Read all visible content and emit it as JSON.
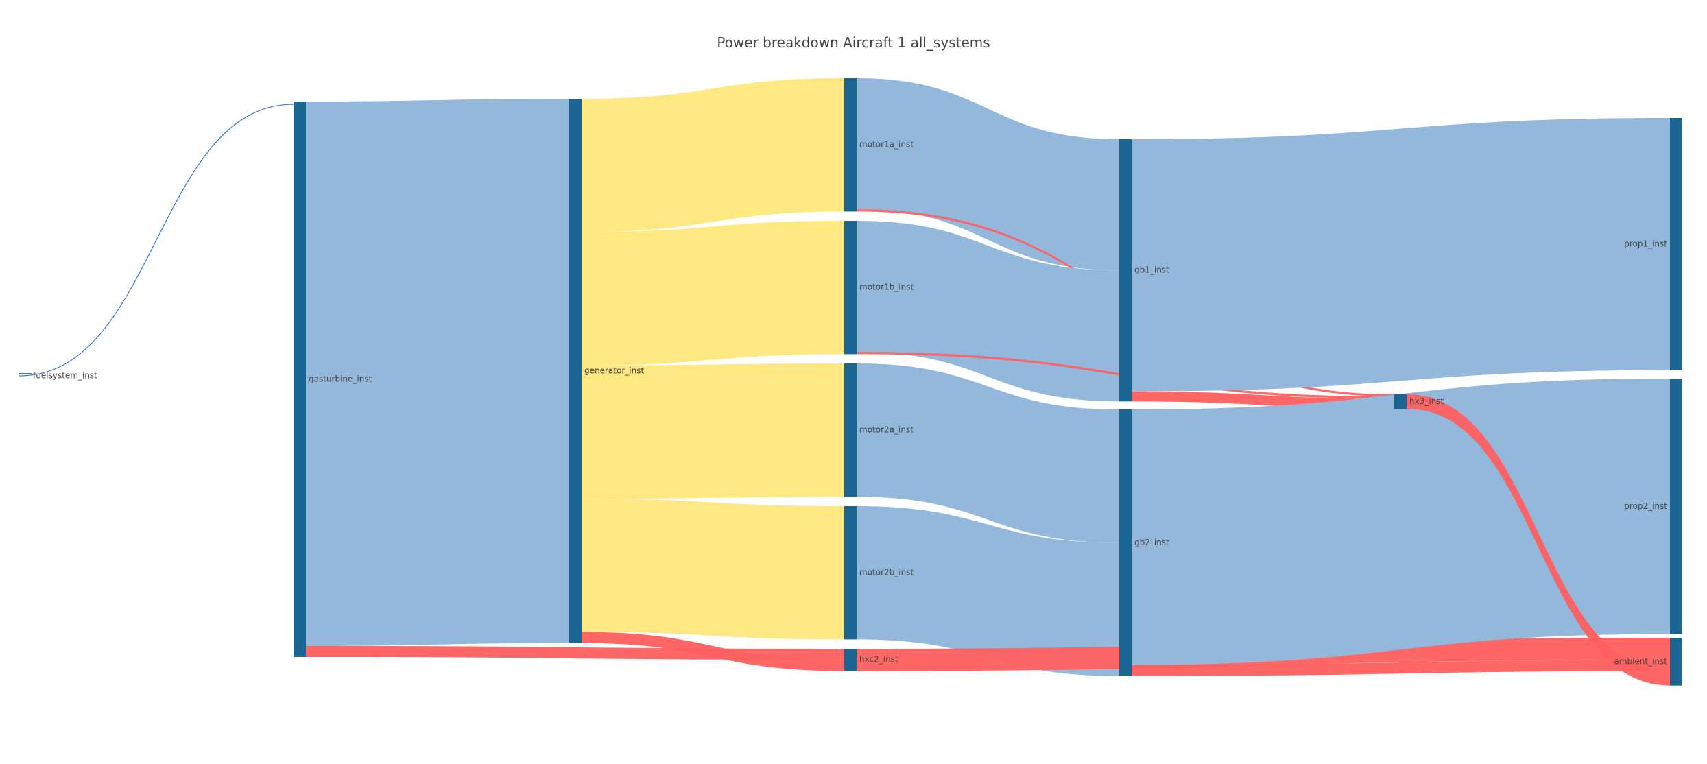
{
  "title": "Power breakdown Aircraft 1 all_systems",
  "colors": {
    "node": "#1a6592",
    "electrical": "#fde882",
    "mechanical": "#93b8dc",
    "heat": "#ff5f5f",
    "fuel": "#3b73d8"
  },
  "chart_data": {
    "type": "sankey",
    "nodes": [
      {
        "id": "fuelsystem_inst",
        "label": "fuelsystem_inst"
      },
      {
        "id": "gasturbine_inst",
        "label": "gasturbine_inst"
      },
      {
        "id": "generator_inst",
        "label": "generator_inst"
      },
      {
        "id": "motor1a_inst",
        "label": "motor1a_inst"
      },
      {
        "id": "motor1b_inst",
        "label": "motor1b_inst"
      },
      {
        "id": "motor2a_inst",
        "label": "motor2a_inst"
      },
      {
        "id": "motor2b_inst",
        "label": "motor2b_inst"
      },
      {
        "id": "hxc2_inst",
        "label": "hxc2_inst"
      },
      {
        "id": "gb1_inst",
        "label": "gb1_inst"
      },
      {
        "id": "gb2_inst",
        "label": "gb2_inst"
      },
      {
        "id": "hx3_inst",
        "label": "hx3_inst"
      },
      {
        "id": "prop1_inst",
        "label": "prop1_inst"
      },
      {
        "id": "prop2_inst",
        "label": "prop2_inst"
      },
      {
        "id": "ambient_inst",
        "label": "ambient_inst"
      }
    ],
    "links": [
      {
        "source": "fuelsystem_inst",
        "target": "gasturbine_inst",
        "kind": "fuel",
        "value": 1
      },
      {
        "source": "gasturbine_inst",
        "target": "generator_inst",
        "kind": "mechanical",
        "value": 98
      },
      {
        "source": "gasturbine_inst",
        "target": "hxc2_inst",
        "kind": "heat",
        "value": 2
      },
      {
        "source": "generator_inst",
        "target": "motor1a_inst",
        "kind": "electrical",
        "value": 24
      },
      {
        "source": "generator_inst",
        "target": "motor1b_inst",
        "kind": "electrical",
        "value": 24
      },
      {
        "source": "generator_inst",
        "target": "motor2a_inst",
        "kind": "electrical",
        "value": 24
      },
      {
        "source": "generator_inst",
        "target": "motor2b_inst",
        "kind": "electrical",
        "value": 24
      },
      {
        "source": "generator_inst",
        "target": "hxc2_inst",
        "kind": "heat",
        "value": 2
      },
      {
        "source": "motor1a_inst",
        "target": "gb1_inst",
        "kind": "mechanical",
        "value": 23.6
      },
      {
        "source": "motor1a_inst",
        "target": "hx3_inst",
        "kind": "heat",
        "value": 0.4
      },
      {
        "source": "motor1b_inst",
        "target": "gb1_inst",
        "kind": "mechanical",
        "value": 23.6
      },
      {
        "source": "motor1b_inst",
        "target": "hx3_inst",
        "kind": "heat",
        "value": 0.4
      },
      {
        "source": "motor2a_inst",
        "target": "gb2_inst",
        "kind": "mechanical",
        "value": 24
      },
      {
        "source": "motor2b_inst",
        "target": "gb2_inst",
        "kind": "mechanical",
        "value": 24
      },
      {
        "source": "hxc2_inst",
        "target": "ambient_inst",
        "kind": "heat",
        "value": 4
      },
      {
        "source": "gb1_inst",
        "target": "prop1_inst",
        "kind": "mechanical",
        "value": 45.4
      },
      {
        "source": "gb1_inst",
        "target": "hx3_inst",
        "kind": "heat",
        "value": 1.8
      },
      {
        "source": "gb2_inst",
        "target": "prop2_inst",
        "kind": "mechanical",
        "value": 46
      },
      {
        "source": "gb2_inst",
        "target": "ambient_inst",
        "kind": "heat",
        "value": 2
      },
      {
        "source": "hx3_inst",
        "target": "ambient_inst",
        "kind": "heat",
        "value": 2.6
      }
    ]
  }
}
